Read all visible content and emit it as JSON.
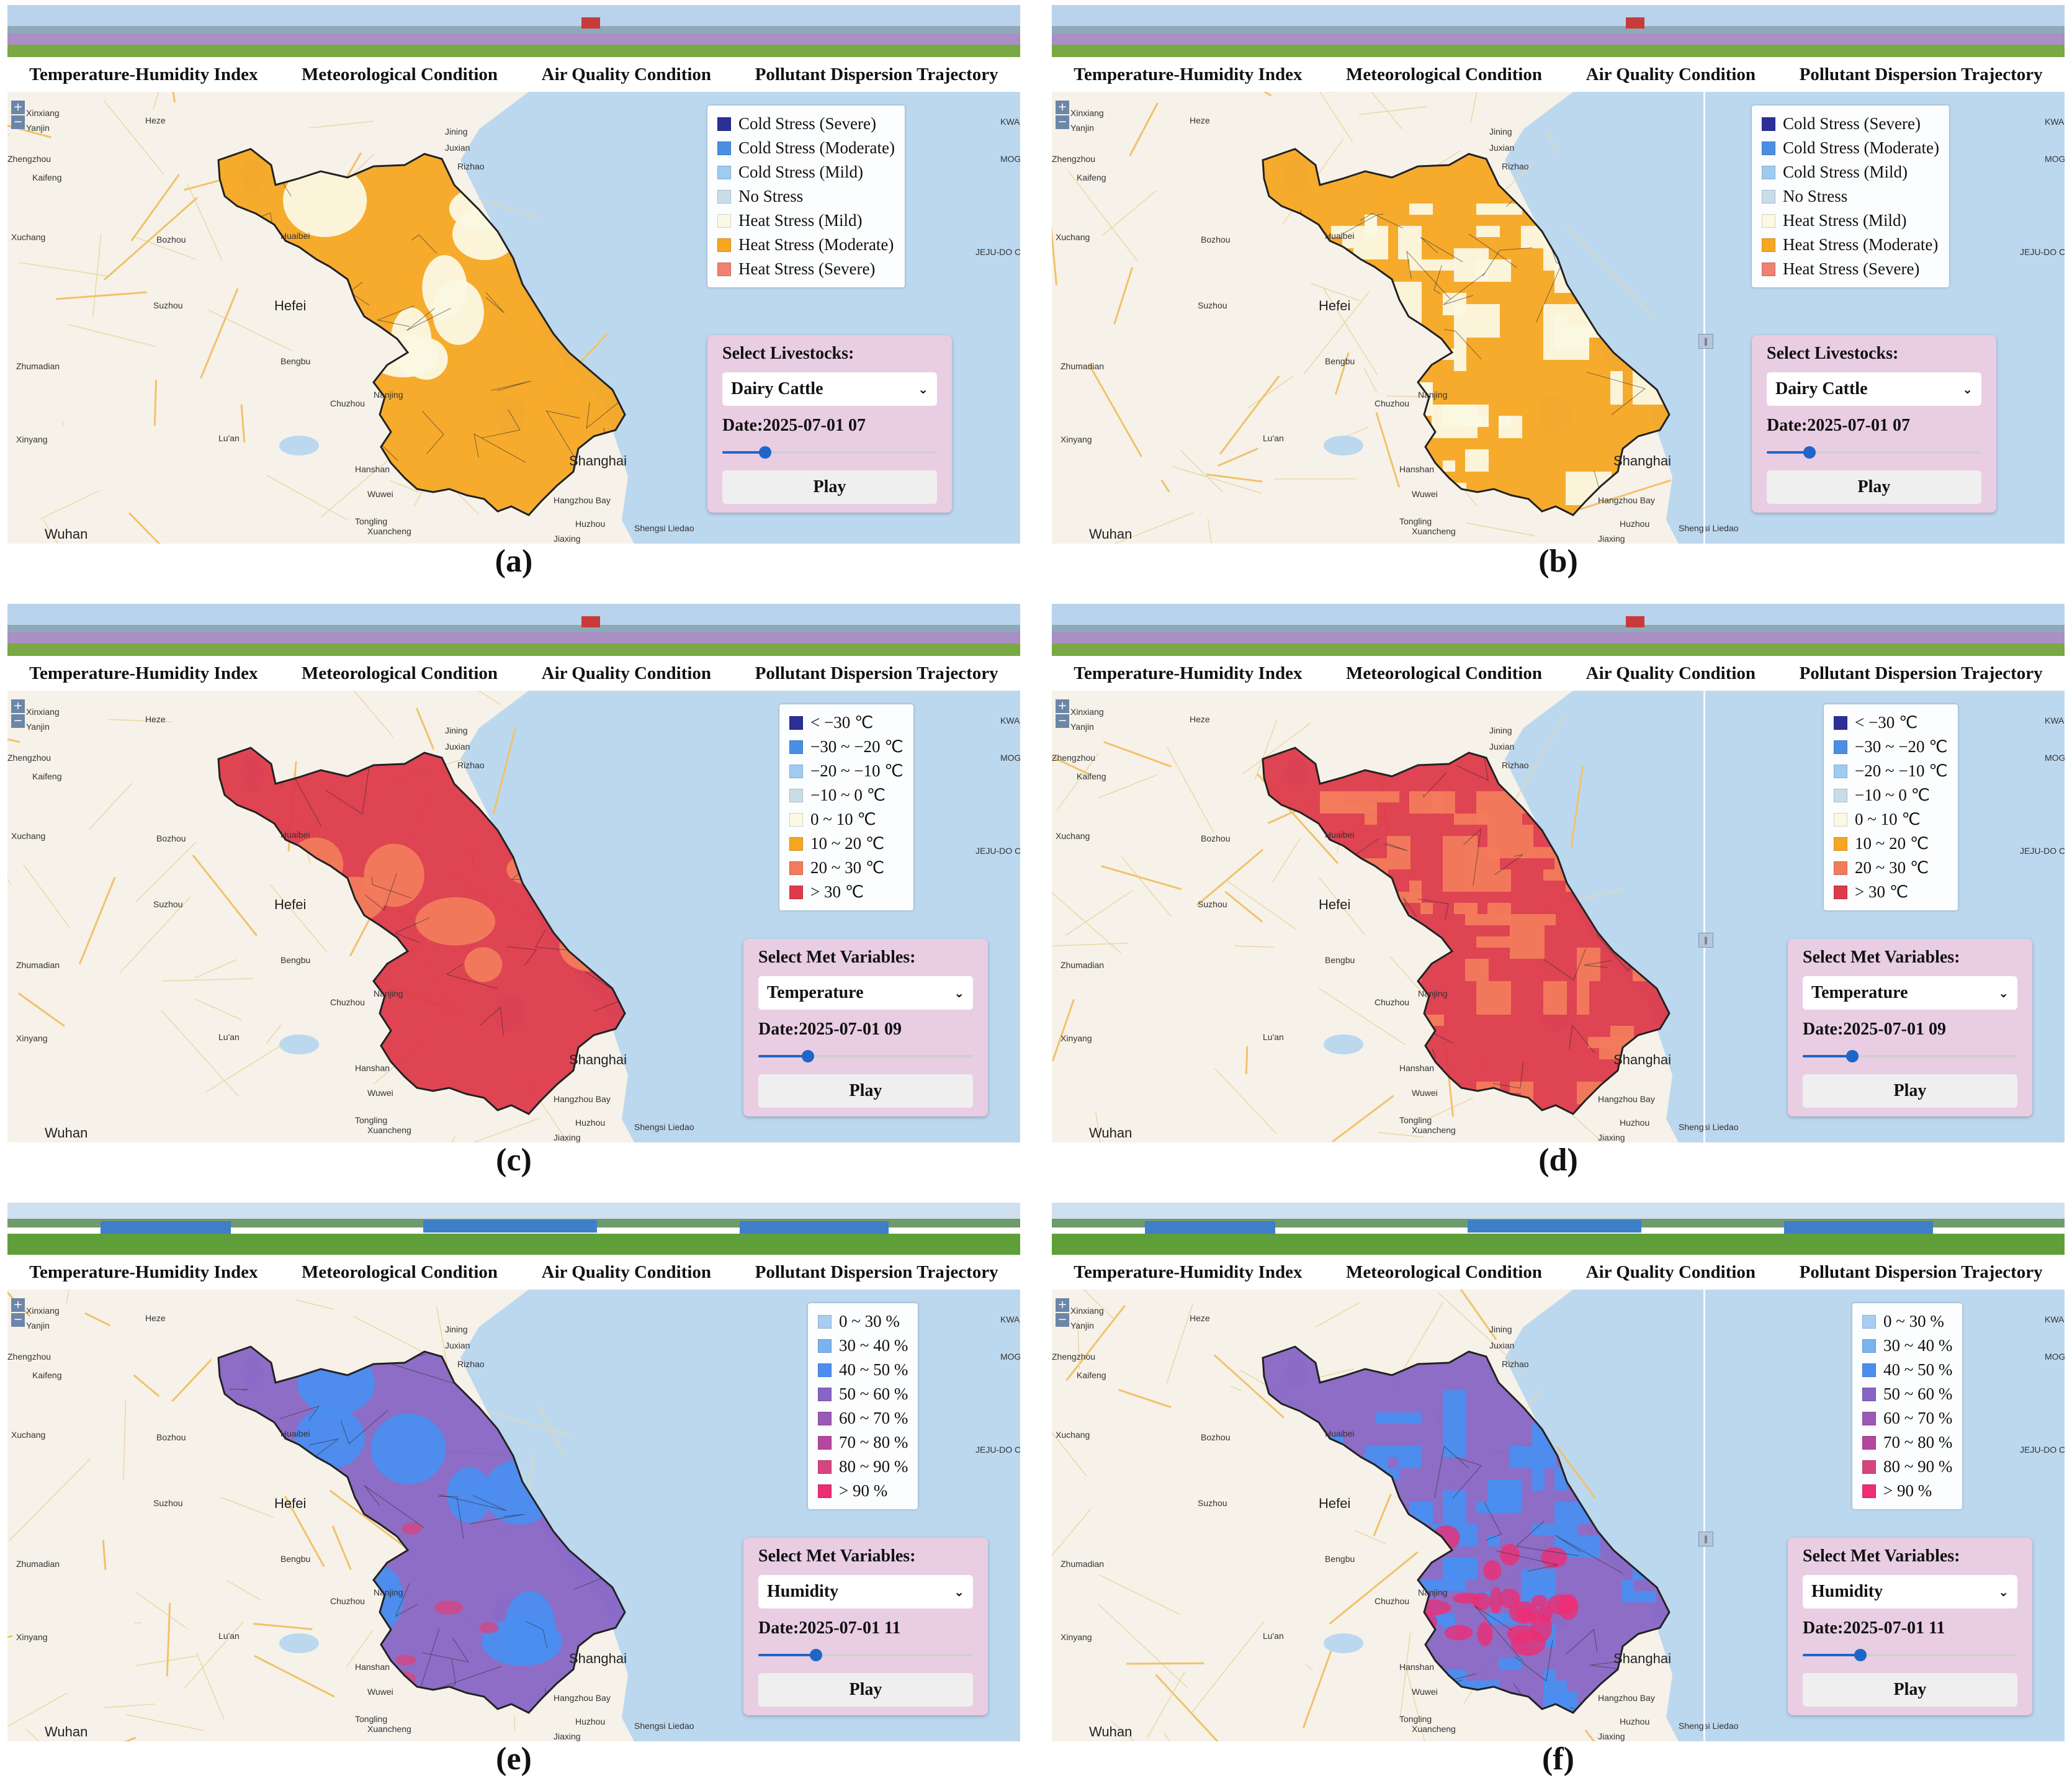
{
  "nav": [
    "Temperature-Humidity Index",
    "Meteorological Condition",
    "Air Quality Condition",
    "Pollutant Dispersion Trajectory"
  ],
  "map_labels": {
    "cities": [
      "Hefei",
      "Shanghai",
      "Wuhan"
    ],
    "places": [
      "Xinxiang",
      "Yanjin",
      "Zhengzhou",
      "Kaifeng",
      "Heze",
      "Jining",
      "Juxian",
      "Rizhao",
      "Xuchang",
      "Bozhou",
      "Huaibei",
      "Suzhou",
      "Bengbu",
      "Chuzhou",
      "Lu'an",
      "Hanshan",
      "Wuwei",
      "Tongling",
      "Xuancheng",
      "Jiaxing",
      "Huzhou",
      "Hangzhou Bay",
      "Zhumadian",
      "Xinyang",
      "Nanjing",
      "Shengsi Liedao",
      "KWANGJU-CHOLLA",
      "MOGPO",
      "JEJU-DO CHEJU"
    ]
  },
  "legends": {
    "thi": {
      "items": [
        {
          "label": "Cold Stress (Severe)",
          "color": "#2b2f96"
        },
        {
          "label": "Cold Stress (Moderate)",
          "color": "#4a8fe3"
        },
        {
          "label": "Cold Stress (Mild)",
          "color": "#9fcbf0"
        },
        {
          "label": "No Stress",
          "color": "#c9dde9"
        },
        {
          "label": "Heat Stress (Mild)",
          "color": "#fbf8e3"
        },
        {
          "label": "Heat Stress (Moderate)",
          "color": "#f5a623"
        },
        {
          "label": "Heat Stress (Severe)",
          "color": "#f08070"
        }
      ]
    },
    "temperature": {
      "items": [
        {
          "label": "< −30 ℃",
          "color": "#2b2f96"
        },
        {
          "label": "−30 ~ −20 ℃",
          "color": "#4a8fe3"
        },
        {
          "label": "−20 ~ −10 ℃",
          "color": "#9fcbf0"
        },
        {
          "label": "−10 ~ 0 ℃",
          "color": "#c9dde9"
        },
        {
          "label": "0 ~ 10 ℃",
          "color": "#fbf8e3"
        },
        {
          "label": "10 ~ 20 ℃",
          "color": "#f5a623"
        },
        {
          "label": "20 ~ 30 ℃",
          "color": "#f27b5c"
        },
        {
          "label": "> 30 ℃",
          "color": "#dd3a4a"
        }
      ]
    },
    "humidity": {
      "items": [
        {
          "label": "0 ~ 30 %",
          "color": "#a9cdf2"
        },
        {
          "label": "30 ~ 40 %",
          "color": "#7ab3f0"
        },
        {
          "label": "40 ~ 50 %",
          "color": "#4b8ef0"
        },
        {
          "label": "50 ~ 60 %",
          "color": "#8765c4"
        },
        {
          "label": "60 ~ 70 %",
          "color": "#9b59b6"
        },
        {
          "label": "70 ~ 80 %",
          "color": "#b4479e"
        },
        {
          "label": "80 ~ 90 %",
          "color": "#d6457f"
        },
        {
          "label": "> 90 %",
          "color": "#ee2d73"
        }
      ]
    }
  },
  "panels": [
    {
      "caption": "(a)",
      "legend": "thi",
      "control": {
        "label": "Select Livestocks:",
        "selected": "Dairy Cattle",
        "date": "Date:2025-07-01 07",
        "progress": 0.2,
        "play": "Play"
      },
      "fill": "#f5a623",
      "secondary": "#fbf8e3",
      "gridded": false,
      "split": false
    },
    {
      "caption": "(b)",
      "legend": "thi",
      "control": {
        "label": "Select Livestocks:",
        "selected": "Dairy Cattle",
        "date": "Date:2025-07-01 07",
        "progress": 0.2,
        "play": "Play"
      },
      "fill": "#f5a623",
      "secondary": "#fbf8e3",
      "gridded": true,
      "split": true
    },
    {
      "caption": "(c)",
      "legend": "temperature",
      "control": {
        "label": "Select Met Variables:",
        "selected": "Temperature",
        "date": "Date:2025-07-01 09",
        "progress": 0.23,
        "play": "Play"
      },
      "fill": "#dd3a4a",
      "secondary": "#f27b5c",
      "gridded": false,
      "split": false
    },
    {
      "caption": "(d)",
      "legend": "temperature",
      "control": {
        "label": "Select Met Variables:",
        "selected": "Temperature",
        "date": "Date:2025-07-01 09",
        "progress": 0.23,
        "play": "Play"
      },
      "fill": "#dd3a4a",
      "secondary": "#f27b5c",
      "gridded": true,
      "split": true
    },
    {
      "caption": "(e)",
      "legend": "humidity",
      "control": {
        "label": "Select Met Variables:",
        "selected": "Humidity",
        "date": "Date:2025-07-01 11",
        "progress": 0.27,
        "play": "Play"
      },
      "fill": "#8765c4",
      "secondary": "#4b8ef0",
      "accent": "#d6457f",
      "gridded": false,
      "split": false
    },
    {
      "caption": "(f)",
      "legend": "humidity",
      "control": {
        "label": "Select Met Variables:",
        "selected": "Humidity",
        "date": "Date:2025-07-01 11",
        "progress": 0.27,
        "play": "Play"
      },
      "fill": "#8765c4",
      "secondary": "#4b8ef0",
      "accent": "#ee2d73",
      "gridded": true,
      "split": true
    }
  ],
  "icons": {
    "dropdown": "chevron-down-icon",
    "zoom_in": "plus-icon",
    "zoom_out": "minus-icon",
    "split_handle": "grip-icon"
  }
}
